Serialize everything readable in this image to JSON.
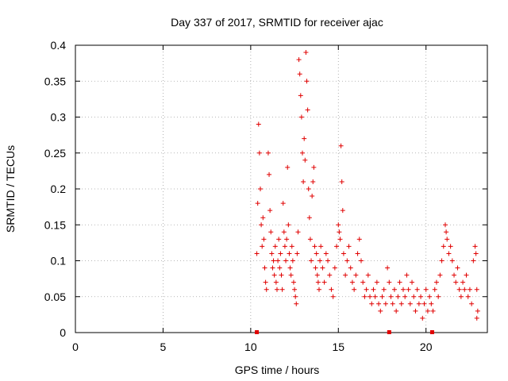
{
  "chart_data": {
    "type": "scatter",
    "title": "Day 337 of 2017, SRMTID for receiver ajac",
    "xlabel": "GPS time / hours",
    "ylabel": "SRMTID / TECUs",
    "xlim": [
      0,
      23.5
    ],
    "ylim": [
      0,
      0.4
    ],
    "x_ticks": [
      0,
      5,
      10,
      15,
      20
    ],
    "x_tick_labels": [
      "0",
      "5",
      "10",
      "15",
      "20"
    ],
    "y_ticks": [
      0,
      0.05,
      0.1,
      0.15,
      0.2,
      0.25,
      0.3,
      0.35,
      0.4
    ],
    "y_tick_labels": [
      "0",
      "0.05",
      "0.1",
      "0.15",
      "0.2",
      "0.25",
      "0.3",
      "0.35",
      "0.4"
    ],
    "grid": true,
    "marker": "+",
    "point_color": "#e00000",
    "baseline_markers_x": [
      10.35,
      17.9,
      20.35
    ],
    "points": [
      [
        10.35,
        0.11
      ],
      [
        10.45,
        0.29
      ],
      [
        10.5,
        0.25
      ],
      [
        10.55,
        0.2
      ],
      [
        10.4,
        0.18
      ],
      [
        10.6,
        0.15
      ],
      [
        10.7,
        0.16
      ],
      [
        10.65,
        0.12
      ],
      [
        10.75,
        0.13
      ],
      [
        10.8,
        0.09
      ],
      [
        10.85,
        0.07
      ],
      [
        10.9,
        0.06
      ],
      [
        11.0,
        0.25
      ],
      [
        11.05,
        0.22
      ],
      [
        11.1,
        0.17
      ],
      [
        11.15,
        0.14
      ],
      [
        11.2,
        0.11
      ],
      [
        11.25,
        0.09
      ],
      [
        11.3,
        0.1
      ],
      [
        11.35,
        0.08
      ],
      [
        11.4,
        0.12
      ],
      [
        11.45,
        0.07
      ],
      [
        11.5,
        0.06
      ],
      [
        11.55,
        0.1
      ],
      [
        11.6,
        0.13
      ],
      [
        11.65,
        0.09
      ],
      [
        11.7,
        0.11
      ],
      [
        11.75,
        0.08
      ],
      [
        11.8,
        0.06
      ],
      [
        11.85,
        0.18
      ],
      [
        11.9,
        0.14
      ],
      [
        11.95,
        0.12
      ],
      [
        12.0,
        0.1
      ],
      [
        12.05,
        0.13
      ],
      [
        12.1,
        0.23
      ],
      [
        12.15,
        0.15
      ],
      [
        12.2,
        0.11
      ],
      [
        12.25,
        0.09
      ],
      [
        12.3,
        0.08
      ],
      [
        12.35,
        0.12
      ],
      [
        12.4,
        0.1
      ],
      [
        12.45,
        0.07
      ],
      [
        12.5,
        0.06
      ],
      [
        12.55,
        0.05
      ],
      [
        12.6,
        0.04
      ],
      [
        12.65,
        0.11
      ],
      [
        12.7,
        0.14
      ],
      [
        12.75,
        0.38
      ],
      [
        12.8,
        0.36
      ],
      [
        12.85,
        0.33
      ],
      [
        12.9,
        0.3
      ],
      [
        12.95,
        0.25
      ],
      [
        13.0,
        0.21
      ],
      [
        13.05,
        0.27
      ],
      [
        13.1,
        0.24
      ],
      [
        13.15,
        0.39
      ],
      [
        13.2,
        0.35
      ],
      [
        13.25,
        0.31
      ],
      [
        13.3,
        0.2
      ],
      [
        13.35,
        0.16
      ],
      [
        13.4,
        0.13
      ],
      [
        13.45,
        0.1
      ],
      [
        13.5,
        0.19
      ],
      [
        13.55,
        0.21
      ],
      [
        13.6,
        0.23
      ],
      [
        13.65,
        0.12
      ],
      [
        13.7,
        0.09
      ],
      [
        13.75,
        0.11
      ],
      [
        13.8,
        0.08
      ],
      [
        13.85,
        0.07
      ],
      [
        13.9,
        0.06
      ],
      [
        13.95,
        0.1
      ],
      [
        14.0,
        0.12
      ],
      [
        14.1,
        0.09
      ],
      [
        14.2,
        0.07
      ],
      [
        14.3,
        0.11
      ],
      [
        14.4,
        0.1
      ],
      [
        14.5,
        0.08
      ],
      [
        14.6,
        0.06
      ],
      [
        14.7,
        0.05
      ],
      [
        14.8,
        0.09
      ],
      [
        14.9,
        0.12
      ],
      [
        15.0,
        0.15
      ],
      [
        15.05,
        0.14
      ],
      [
        15.1,
        0.13
      ],
      [
        15.15,
        0.26
      ],
      [
        15.2,
        0.21
      ],
      [
        15.25,
        0.17
      ],
      [
        15.3,
        0.11
      ],
      [
        15.4,
        0.08
      ],
      [
        15.5,
        0.1
      ],
      [
        15.6,
        0.12
      ],
      [
        15.7,
        0.09
      ],
      [
        15.8,
        0.07
      ],
      [
        15.9,
        0.06
      ],
      [
        16.0,
        0.08
      ],
      [
        16.1,
        0.11
      ],
      [
        16.2,
        0.13
      ],
      [
        16.3,
        0.1
      ],
      [
        16.4,
        0.07
      ],
      [
        16.5,
        0.05
      ],
      [
        16.6,
        0.06
      ],
      [
        16.7,
        0.08
      ],
      [
        16.8,
        0.05
      ],
      [
        16.9,
        0.04
      ],
      [
        17.0,
        0.06
      ],
      [
        17.1,
        0.05
      ],
      [
        17.2,
        0.07
      ],
      [
        17.3,
        0.04
      ],
      [
        17.4,
        0.03
      ],
      [
        17.5,
        0.05
      ],
      [
        17.6,
        0.06
      ],
      [
        17.7,
        0.04
      ],
      [
        17.8,
        0.09
      ],
      [
        17.9,
        0.07
      ],
      [
        18.0,
        0.05
      ],
      [
        18.1,
        0.04
      ],
      [
        18.2,
        0.06
      ],
      [
        18.3,
        0.03
      ],
      [
        18.4,
        0.05
      ],
      [
        18.5,
        0.07
      ],
      [
        18.6,
        0.04
      ],
      [
        18.7,
        0.06
      ],
      [
        18.8,
        0.05
      ],
      [
        18.9,
        0.08
      ],
      [
        19.0,
        0.06
      ],
      [
        19.1,
        0.04
      ],
      [
        19.2,
        0.07
      ],
      [
        19.3,
        0.05
      ],
      [
        19.4,
        0.03
      ],
      [
        19.5,
        0.06
      ],
      [
        19.6,
        0.04
      ],
      [
        19.7,
        0.05
      ],
      [
        19.8,
        0.02
      ],
      [
        19.9,
        0.04
      ],
      [
        20.0,
        0.06
      ],
      [
        20.1,
        0.03
      ],
      [
        20.2,
        0.05
      ],
      [
        20.3,
        0.04
      ],
      [
        20.4,
        0.03
      ],
      [
        20.5,
        0.06
      ],
      [
        20.6,
        0.07
      ],
      [
        20.7,
        0.05
      ],
      [
        20.8,
        0.08
      ],
      [
        20.9,
        0.1
      ],
      [
        21.0,
        0.12
      ],
      [
        21.1,
        0.15
      ],
      [
        21.15,
        0.14
      ],
      [
        21.2,
        0.13
      ],
      [
        21.3,
        0.11
      ],
      [
        21.4,
        0.12
      ],
      [
        21.5,
        0.1
      ],
      [
        21.6,
        0.08
      ],
      [
        21.7,
        0.07
      ],
      [
        21.8,
        0.09
      ],
      [
        21.9,
        0.06
      ],
      [
        22.0,
        0.05
      ],
      [
        22.1,
        0.07
      ],
      [
        22.2,
        0.06
      ],
      [
        22.3,
        0.08
      ],
      [
        22.4,
        0.05
      ],
      [
        22.5,
        0.06
      ],
      [
        22.6,
        0.04
      ],
      [
        22.7,
        0.1
      ],
      [
        22.8,
        0.12
      ],
      [
        22.85,
        0.11
      ],
      [
        22.9,
        0.06
      ],
      [
        22.95,
        0.03
      ],
      [
        22.9,
        0.02
      ]
    ]
  }
}
